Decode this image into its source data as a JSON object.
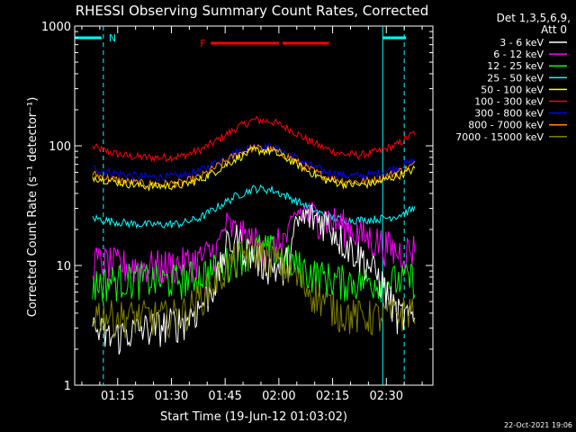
{
  "chart_data": {
    "type": "line",
    "title": "RHESSI Observing Summary Count Rates, Corrected",
    "xlabel": "Start Time (19-Jun-12 01:03:02)",
    "ylabel": "Corrected Count Rate (s⁻¹ detector⁻¹)",
    "y_scale": "log",
    "ylim": [
      1,
      1000
    ],
    "xlim": [
      0,
      100
    ],
    "x_unit": "minutes after 01:03:02 (UT)",
    "x_ticks": [
      {
        "label": "01:15",
        "x": 12
      },
      {
        "label": "01:30",
        "x": 27
      },
      {
        "label": "01:45",
        "x": 42
      },
      {
        "label": "02:00",
        "x": 57
      },
      {
        "label": "02:15",
        "x": 72
      },
      {
        "label": "02:30",
        "x": 87
      }
    ],
    "y_ticks": [
      {
        "label": "1",
        "y": 1
      },
      {
        "label": "10",
        "y": 10
      },
      {
        "label": "100",
        "y": 100
      },
      {
        "label": "1000",
        "y": 1000
      }
    ],
    "legend": {
      "placement": "right",
      "header": [
        "Det 1,3,5,6,9,",
        "Att 0"
      ],
      "entries": [
        {
          "label": "3 - 6 keV",
          "color": "#ffffff"
        },
        {
          "label": "6 - 12 keV",
          "color": "#ff00ff"
        },
        {
          "label": "12 - 25 keV",
          "color": "#00ff00"
        },
        {
          "label": "25 - 50 keV",
          "color": "#00ffff"
        },
        {
          "label": "50 - 100 keV",
          "color": "#ffff00"
        },
        {
          "label": "100 - 300 keV",
          "color": "#ff0000"
        },
        {
          "label": "300 - 800 keV",
          "color": "#0000ff"
        },
        {
          "label": "800 - 7000 keV",
          "color": "#ff8c00"
        },
        {
          "label": "7000 - 15000 keV",
          "color": "#808000"
        }
      ]
    },
    "annotations": {
      "night_marker": {
        "label": "N",
        "color": "#00ffff",
        "x_start": 0,
        "x_end": 8
      },
      "day_marker_end": {
        "x_start": 86,
        "x_end": 92
      },
      "flare_marker": {
        "label": "F",
        "color": "#ff0000",
        "segments": [
          [
            38,
            57
          ],
          [
            58,
            71
          ]
        ]
      },
      "dashed_lines_x": [
        8,
        92
      ],
      "solid_lines_x": [
        86
      ]
    },
    "series": [
      {
        "name": "100 - 300 keV",
        "color": "#ff0000",
        "x": [
          5,
          10,
          15,
          20,
          25,
          30,
          35,
          40,
          45,
          50,
          55,
          60,
          65,
          70,
          75,
          80,
          85,
          90,
          95
        ],
        "y": [
          98,
          88,
          82,
          80,
          80,
          82,
          92,
          112,
          140,
          165,
          160,
          138,
          112,
          95,
          85,
          84,
          90,
          102,
          130
        ]
      },
      {
        "name": "300 - 800 keV",
        "color": "#0000ff",
        "x": [
          5,
          10,
          15,
          20,
          25,
          30,
          35,
          40,
          45,
          50,
          55,
          60,
          65,
          70,
          75,
          80,
          85,
          90,
          95
        ],
        "y": [
          65,
          60,
          57,
          55,
          55,
          56,
          62,
          74,
          88,
          100,
          97,
          85,
          70,
          61,
          57,
          56,
          59,
          66,
          76
        ]
      },
      {
        "name": "800 - 7000 keV",
        "color": "#ff8c00",
        "x": [
          5,
          10,
          15,
          20,
          25,
          30,
          35,
          40,
          45,
          50,
          55,
          60,
          65,
          70,
          75,
          80,
          85,
          90,
          95
        ],
        "y": [
          58,
          53,
          50,
          48,
          48,
          49,
          55,
          68,
          84,
          96,
          93,
          80,
          65,
          55,
          51,
          50,
          53,
          60,
          70
        ]
      },
      {
        "name": "50 - 100 keV",
        "color": "#ffff00",
        "x": [
          5,
          10,
          15,
          20,
          25,
          30,
          35,
          40,
          45,
          50,
          55,
          60,
          65,
          70,
          75,
          80,
          85,
          90,
          95
        ],
        "y": [
          55,
          51,
          48,
          46,
          46,
          47,
          52,
          63,
          78,
          92,
          90,
          76,
          62,
          52,
          48,
          47,
          50,
          56,
          64
        ]
      },
      {
        "name": "25 - 50 keV",
        "color": "#00ffff",
        "x": [
          5,
          10,
          15,
          20,
          25,
          30,
          35,
          40,
          45,
          50,
          55,
          60,
          65,
          70,
          75,
          80,
          85,
          90,
          95
        ],
        "y": [
          25,
          23.5,
          22.5,
          22,
          22,
          22.5,
          25,
          31,
          38,
          44,
          43,
          37,
          31,
          26,
          24,
          24,
          24.5,
          26,
          30
        ]
      },
      {
        "name": "6 - 12 keV",
        "color": "#ff00ff",
        "x": [
          5,
          10,
          15,
          20,
          25,
          30,
          35,
          40,
          42,
          45,
          50,
          55,
          60,
          62,
          65,
          70,
          75,
          80,
          85,
          90,
          95
        ],
        "y": [
          11,
          10.5,
          10,
          10,
          10,
          10.5,
          11.5,
          14,
          22,
          19,
          16,
          14,
          18,
          28,
          27,
          25,
          22,
          18,
          16,
          13,
          14
        ]
      },
      {
        "name": "12 - 25 keV",
        "color": "#00ff00",
        "x": [
          5,
          10,
          15,
          20,
          25,
          30,
          35,
          40,
          45,
          50,
          55,
          60,
          65,
          70,
          75,
          80,
          85,
          90,
          95
        ],
        "y": [
          7,
          7.5,
          7.8,
          7.8,
          7.5,
          7.8,
          8.5,
          9.5,
          12,
          14,
          13.5,
          11,
          9,
          8,
          7.5,
          7.5,
          7.5,
          7.5,
          8
        ]
      },
      {
        "name": "3 - 6 keV",
        "color": "#ffffff",
        "x": [
          5,
          10,
          15,
          20,
          25,
          30,
          35,
          40,
          42,
          45,
          50,
          55,
          58,
          60,
          62,
          65,
          70,
          75,
          80,
          85,
          90,
          95
        ],
        "y": [
          3,
          2.5,
          2.8,
          3,
          3.2,
          3.5,
          4.5,
          8,
          14,
          17,
          12,
          10,
          9,
          12,
          22,
          26,
          24,
          16,
          12,
          8,
          4,
          3.5
        ]
      },
      {
        "name": "7000 - 15000 keV",
        "color": "#808000",
        "x": [
          5,
          10,
          15,
          20,
          25,
          30,
          35,
          40,
          45,
          50,
          55,
          60,
          65,
          70,
          75,
          80,
          85,
          90,
          95
        ],
        "y": [
          4.2,
          3.8,
          3.8,
          3.8,
          3.8,
          4,
          5.5,
          8,
          11.5,
          13.5,
          12,
          9,
          6.5,
          5,
          4,
          3.8,
          3.8,
          4,
          4.5
        ]
      }
    ]
  },
  "footer": {
    "timestamp": "22-Oct-2021 19:06"
  }
}
